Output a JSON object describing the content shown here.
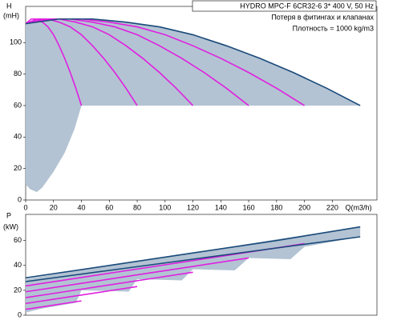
{
  "chart_data": [
    {
      "type": "line",
      "title": "HYDRO MPC-F 6CR32-6   3* 400 V, 50 Hz",
      "annotations": [
        "Потеря в фитингах и клапанах",
        "Плотность = 1000 kg/m3"
      ],
      "y_label": [
        "H",
        "(mH)"
      ],
      "x_label": "Q(m3/h)",
      "xlim": [
        0,
        252
      ],
      "ylim": [
        0,
        123
      ],
      "xticks": [
        0,
        20,
        40,
        60,
        80,
        100,
        120,
        140,
        160,
        180,
        200,
        220
      ],
      "yticks": [
        0,
        20,
        40,
        60,
        80,
        100
      ],
      "area": {
        "color": "#b3c3d3",
        "x": [
          0,
          24,
          48,
          72,
          96,
          120,
          144,
          168,
          192,
          216,
          240,
          200,
          120,
          40,
          35,
          28,
          20,
          12,
          8,
          3,
          0
        ],
        "values": [
          112,
          115,
          115,
          113,
          110,
          105,
          98,
          90,
          81,
          71,
          60,
          60,
          60,
          60,
          45,
          30,
          18,
          8,
          5,
          7,
          10
        ]
      },
      "series": [
        {
          "color": "#e020e0",
          "x": [
            0,
            4,
            8,
            12,
            16,
            20,
            24,
            28,
            32,
            36,
            40
          ],
          "values": [
            112,
            115,
            115,
            113,
            110,
            105,
            98,
            90,
            81,
            71,
            60
          ]
        },
        {
          "color": "#e020e0",
          "x": [
            0,
            8,
            16,
            24,
            32,
            40,
            48,
            56,
            64,
            72,
            80
          ],
          "values": [
            112,
            115,
            115,
            113,
            110,
            105,
            98,
            90,
            81,
            71,
            60
          ]
        },
        {
          "color": "#e020e0",
          "x": [
            0,
            12,
            24,
            36,
            48,
            60,
            72,
            84,
            96,
            108,
            120
          ],
          "values": [
            112,
            115,
            115,
            113,
            110,
            105,
            98,
            90,
            81,
            71,
            60
          ]
        },
        {
          "color": "#e020e0",
          "x": [
            0,
            16,
            32,
            48,
            64,
            80,
            96,
            112,
            128,
            144,
            160
          ],
          "values": [
            112,
            115,
            115,
            113,
            110,
            105,
            98,
            90,
            81,
            71,
            60
          ]
        },
        {
          "color": "#e020e0",
          "x": [
            0,
            20,
            40,
            60,
            80,
            100,
            120,
            140,
            160,
            180,
            200
          ],
          "values": [
            112,
            115,
            115,
            113,
            110,
            105,
            98,
            90,
            81,
            71,
            60
          ]
        },
        {
          "color": "#1a4a7a",
          "x": [
            0,
            24,
            48,
            72,
            96,
            120,
            144,
            168,
            192,
            216,
            240
          ],
          "values": [
            112,
            115,
            115,
            113,
            110,
            105,
            98,
            90,
            81,
            71,
            60
          ]
        }
      ]
    },
    {
      "type": "line",
      "y_label": [
        "P",
        "(kW)"
      ],
      "xlim": [
        0,
        252
      ],
      "ylim": [
        0,
        81
      ],
      "yticks": [
        0,
        20,
        40,
        60
      ],
      "area": {
        "color": "#b3c3d3",
        "x": [
          0,
          60,
          120,
          180,
          240,
          240,
          200,
          190,
          160,
          150,
          120,
          112,
          80,
          74,
          40,
          36,
          10,
          0
        ],
        "values": [
          29,
          40,
          50,
          61,
          71,
          63,
          55,
          45,
          46,
          36,
          37,
          28,
          29,
          19,
          20,
          10,
          5,
          2
        ]
      },
      "series": [
        {
          "color": "#e020e0",
          "x": [
            0,
            10,
            20,
            30,
            40
          ],
          "values": [
            4.7,
            6.4,
            8.1,
            9.8,
            11.5
          ]
        },
        {
          "color": "#e020e0",
          "x": [
            0,
            20,
            40,
            60,
            80
          ],
          "values": [
            9.4,
            12.8,
            16.2,
            19.6,
            23
          ]
        },
        {
          "color": "#e020e0",
          "x": [
            0,
            30,
            60,
            90,
            120
          ],
          "values": [
            14.1,
            19.2,
            24.3,
            29.4,
            34.5
          ]
        },
        {
          "color": "#e020e0",
          "x": [
            0,
            40,
            80,
            120,
            160
          ],
          "values": [
            18.8,
            25.6,
            32.4,
            39.2,
            46
          ]
        },
        {
          "color": "#e020e0",
          "x": [
            0,
            50,
            100,
            150,
            200
          ],
          "values": [
            23.5,
            32,
            40.5,
            49,
            57.5
          ]
        },
        {
          "color": "#1a4a7a",
          "x": [
            0,
            60,
            120,
            180,
            240
          ],
          "values": [
            27,
            36,
            45,
            54,
            63
          ]
        },
        {
          "color": "#1a4a7a",
          "x": [
            0,
            60,
            120,
            180,
            240
          ],
          "values": [
            30,
            40,
            50,
            60,
            71
          ]
        }
      ]
    }
  ]
}
